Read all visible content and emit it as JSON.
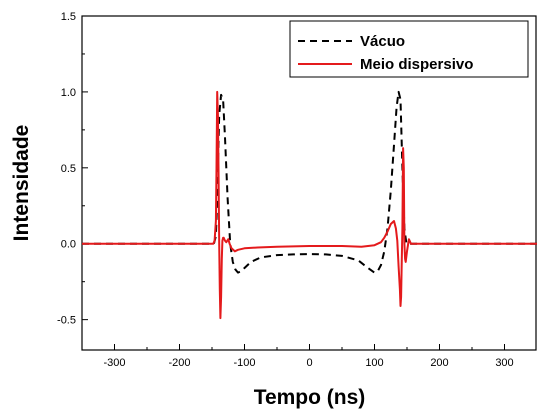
{
  "chart_data": {
    "type": "line",
    "title": "",
    "xlabel": "Tempo (ns)",
    "ylabel": "Intensidade",
    "xlim": [
      -350,
      350
    ],
    "ylim": [
      -0.7,
      1.5
    ],
    "xticks": [
      -300,
      -200,
      -100,
      0,
      100,
      200,
      300
    ],
    "yticks": [
      -0.5,
      0.0,
      0.5,
      1.0,
      1.5
    ],
    "xtick_labels": [
      "-300",
      "-200",
      "-100",
      "0",
      "100",
      "200",
      "300"
    ],
    "ytick_labels": [
      "-0.5",
      "0.0",
      "0.5",
      "1.0",
      "1.5"
    ],
    "grid": false,
    "legend_position": "top-right",
    "series": [
      {
        "name": "Vácuo",
        "color": "#000000",
        "dash": "dashed",
        "x": [
          -350,
          -160,
          -147,
          -144,
          -142,
          -139,
          -136,
          -133,
          -130,
          -126,
          -122,
          -118,
          -114,
          -110,
          -105,
          -100,
          -90,
          -75,
          -50,
          -25,
          0,
          25,
          50,
          75,
          90,
          100,
          105,
          110,
          115,
          120,
          125,
          130,
          134,
          137,
          140,
          143,
          146,
          149,
          152,
          160,
          350
        ],
        "y": [
          0,
          0,
          0,
          0.05,
          0.3,
          0.85,
          0.98,
          0.95,
          0.7,
          0.3,
          0.0,
          -0.12,
          -0.17,
          -0.19,
          -0.18,
          -0.16,
          -0.12,
          -0.09,
          -0.075,
          -0.07,
          -0.068,
          -0.07,
          -0.08,
          -0.11,
          -0.16,
          -0.19,
          -0.18,
          -0.14,
          -0.05,
          0.1,
          0.35,
          0.65,
          0.9,
          1.0,
          0.95,
          0.5,
          0.1,
          0.0,
          0,
          0,
          0
        ]
      },
      {
        "name": "Meio dispersivo",
        "color": "#e41a1c",
        "dash": "solid",
        "x": [
          -350,
          -148,
          -146,
          -144,
          -143,
          -142,
          -141,
          -140,
          -139,
          -138,
          -137,
          -136,
          -135,
          -134,
          -133,
          -132,
          -131,
          -130,
          -128,
          -125,
          -123,
          -120,
          -115,
          -110,
          -100,
          -80,
          -50,
          0,
          50,
          80,
          100,
          110,
          115,
          120,
          125,
          130,
          133,
          135,
          137,
          139,
          140,
          141,
          142,
          143,
          144,
          145,
          146,
          147,
          148,
          150,
          153,
          156,
          160,
          350
        ],
        "y": [
          0,
          0,
          0.02,
          0.15,
          0.5,
          1.0,
          0.85,
          0.5,
          0.0,
          -0.3,
          -0.49,
          -0.35,
          -0.1,
          0.02,
          0.04,
          0.04,
          0.03,
          0.02,
          0.01,
          0.03,
          0.0,
          -0.03,
          -0.05,
          -0.04,
          -0.03,
          -0.025,
          -0.02,
          -0.015,
          -0.015,
          -0.02,
          -0.01,
          0.01,
          0.04,
          0.08,
          0.13,
          0.15,
          0.1,
          0.02,
          -0.15,
          -0.3,
          -0.41,
          -0.35,
          -0.1,
          0.1,
          0.63,
          0.5,
          0.0,
          -0.1,
          -0.12,
          -0.05,
          0.03,
          0.0,
          0,
          0
        ]
      }
    ]
  }
}
